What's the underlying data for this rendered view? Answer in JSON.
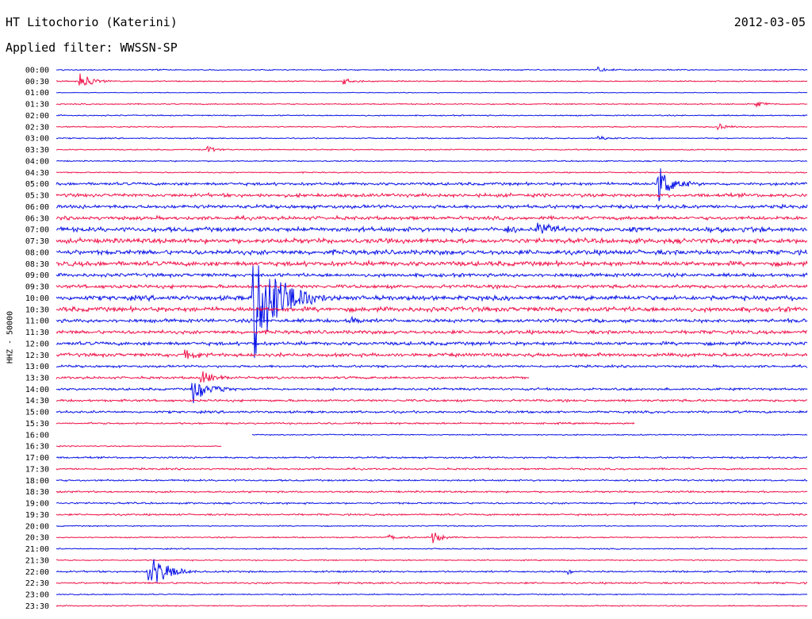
{
  "header": {
    "station": "HT Litochorio (Katerini)",
    "date": "2012-03-05",
    "filter": "Applied filter: WWSSN-SP"
  },
  "axis_label": "HHZ - 50000",
  "colors": {
    "blue": "#0a14e6",
    "red": "#f0144b",
    "label": "#000000"
  },
  "times": [
    "00:00",
    "00:30",
    "01:00",
    "01:30",
    "02:00",
    "02:30",
    "03:00",
    "03:30",
    "04:00",
    "04:30",
    "05:00",
    "05:30",
    "06:00",
    "06:30",
    "07:00",
    "07:30",
    "08:00",
    "08:30",
    "09:00",
    "09:30",
    "10:00",
    "10:30",
    "11:00",
    "11:30",
    "12:00",
    "12:30",
    "13:00",
    "13:30",
    "14:00",
    "14:30",
    "15:00",
    "15:30",
    "16:00",
    "16:30",
    "17:00",
    "17:30",
    "18:00",
    "18:30",
    "19:00",
    "19:30",
    "20:00",
    "20:30",
    "21:00",
    "21:30",
    "22:00",
    "22:30",
    "23:00",
    "23:30"
  ],
  "noise": [
    1,
    1,
    0.6,
    1,
    1,
    1,
    1,
    1,
    1,
    1,
    2.5,
    3,
    3,
    3,
    4,
    4,
    4,
    4,
    3,
    3,
    4,
    4,
    3,
    3,
    3,
    3,
    2,
    2,
    2,
    2,
    2,
    1.5,
    1,
    1,
    1.5,
    1.5,
    1.5,
    1.5,
    1.5,
    1.5,
    1,
    1,
    1,
    1,
    1.5,
    1.5,
    1,
    1
  ],
  "events": [
    {
      "row": 1,
      "time": 0.03,
      "amp": 12,
      "dur": 0.02
    },
    {
      "row": 1,
      "time": 0.38,
      "amp": 5,
      "dur": 0.02
    },
    {
      "row": 0,
      "time": 0.72,
      "amp": 4,
      "dur": 0.015
    },
    {
      "row": 3,
      "time": 0.93,
      "amp": 6,
      "dur": 0.015
    },
    {
      "row": 5,
      "time": 0.88,
      "amp": 6,
      "dur": 0.015
    },
    {
      "row": 6,
      "time": 0.72,
      "amp": 3,
      "dur": 0.02
    },
    {
      "row": 7,
      "time": 0.2,
      "amp": 5,
      "dur": 0.015
    },
    {
      "row": 10,
      "time": 0.8,
      "amp": 30,
      "dur": 0.02
    },
    {
      "row": 14,
      "time": 0.6,
      "amp": 4,
      "dur": 0.02
    },
    {
      "row": 14,
      "time": 0.64,
      "amp": 12,
      "dur": 0.02
    },
    {
      "row": 20,
      "time": 0.26,
      "amp": 95,
      "dur": 0.035
    },
    {
      "row": 22,
      "time": 0.39,
      "amp": 6,
      "dur": 0.015
    },
    {
      "row": 25,
      "time": 0.17,
      "amp": 10,
      "dur": 0.02
    },
    {
      "row": 27,
      "time": 0.19,
      "amp": 14,
      "dur": 0.02
    },
    {
      "row": 28,
      "time": 0.18,
      "amp": 20,
      "dur": 0.025
    },
    {
      "row": 28,
      "time": 0.49,
      "amp": 4,
      "dur": 0.01
    },
    {
      "row": 41,
      "time": 0.44,
      "amp": 4,
      "dur": 0.025
    },
    {
      "row": 41,
      "time": 0.5,
      "amp": 8,
      "dur": 0.015
    },
    {
      "row": 44,
      "time": 0.12,
      "amp": 25,
      "dur": 0.03
    },
    {
      "row": 44,
      "time": 0.68,
      "amp": 4,
      "dur": 0.01
    }
  ],
  "gaps": [
    {
      "row": 27,
      "start": 0.63,
      "end": 1.0
    },
    {
      "row": 31,
      "start": 0.77,
      "end": 1.0
    },
    {
      "row": 32,
      "start": 0.0,
      "end": 0.26
    },
    {
      "row": 33,
      "start": 0.22,
      "end": 0.41
    },
    {
      "row": 33,
      "start": 0.41,
      "end": 1.0
    }
  ]
}
